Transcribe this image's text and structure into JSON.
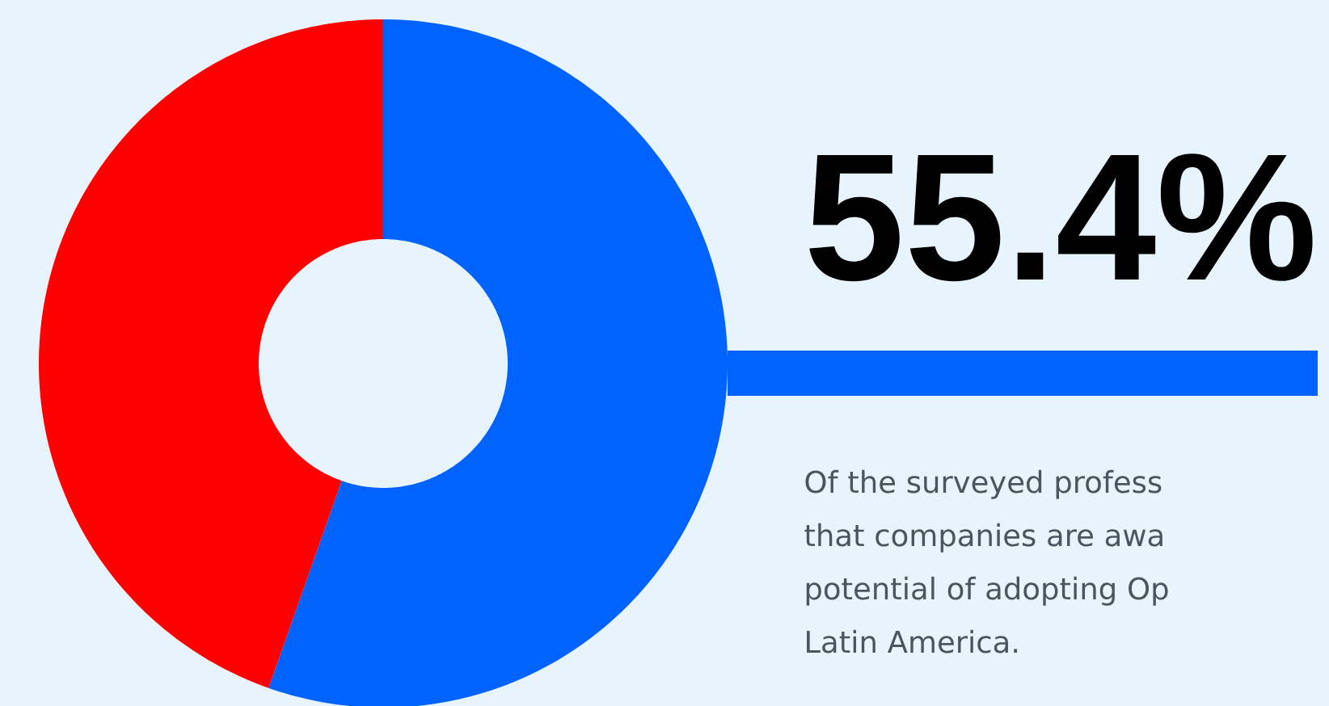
{
  "chart_data": {
    "type": "donut",
    "title": "55.4%",
    "categories": [
      null,
      null
    ],
    "values": [
      55.4,
      44.6
    ],
    "colors": [
      "#0062ff",
      "#ff0000"
    ],
    "annotations": [
      "Of the surveyed profess",
      "that companies are awa",
      "potential of adopting Op",
      "Latin America."
    ]
  }
}
